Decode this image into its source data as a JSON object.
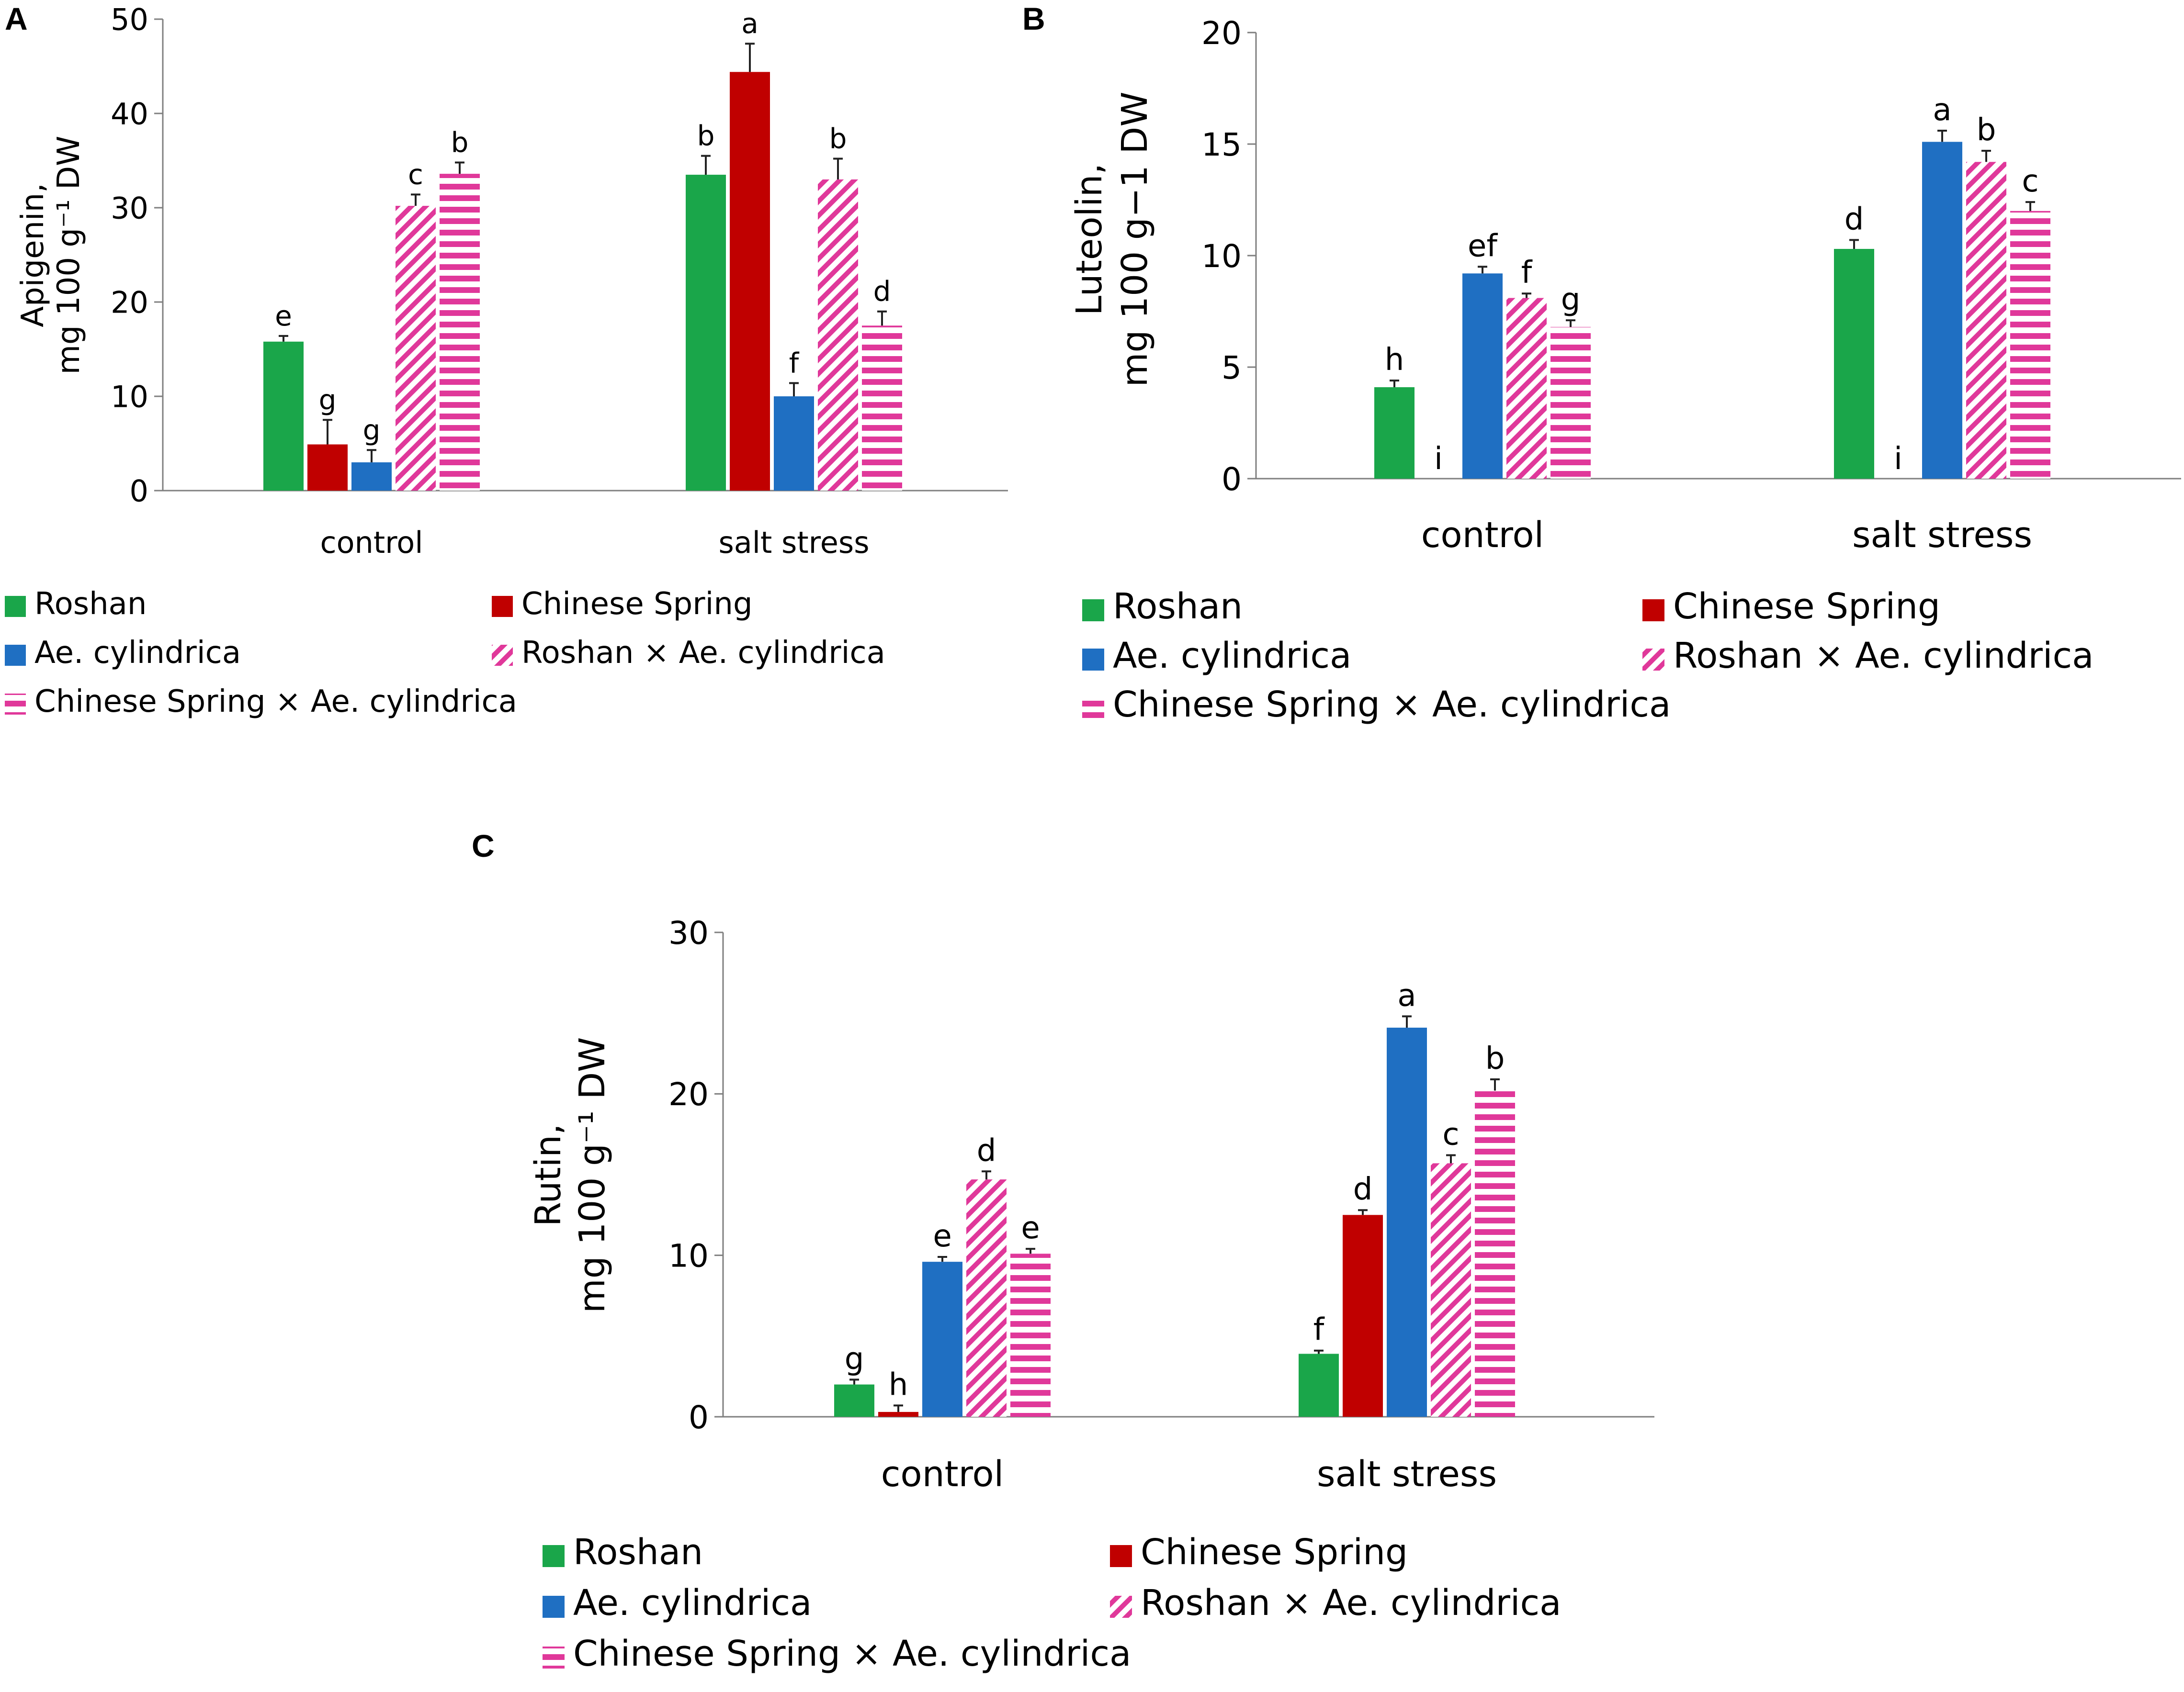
{
  "colors": {
    "roshan": "#1aa64a",
    "chinese_spring": "#c00000",
    "ae_cylindrica": "#1f6fc2",
    "hybrid": "#e0389a",
    "axis": "#7f7f7f",
    "error": "#222222"
  },
  "legend": {
    "series": [
      {
        "name": "Roshan",
        "fill": "solid",
        "color": "#1aa64a"
      },
      {
        "name": "Chinese Spring",
        "fill": "solid",
        "color": "#c00000"
      },
      {
        "name": "Ae. cylindrica",
        "fill": "solid",
        "color": "#1f6fc2"
      },
      {
        "name": "Roshan × Ae. cylindrica",
        "fill": "diagonal",
        "color": "#e0389a"
      },
      {
        "name": "Chinese Spring × Ae. cylindrica",
        "fill": "horizontal",
        "color": "#e0389a"
      }
    ]
  },
  "chart_data": [
    {
      "panel": "A",
      "type": "bar",
      "ylabel_line1": "Apigenin,",
      "ylabel_line2": "mg 100 g⁻¹ DW",
      "ylim": [
        0,
        50
      ],
      "yticks": [
        0,
        10,
        20,
        30,
        40,
        50
      ],
      "categories": [
        "control",
        "salt stress"
      ],
      "series": [
        {
          "name": "Roshan",
          "values": [
            15.8,
            33.5
          ],
          "errors": [
            0.6,
            2.0
          ],
          "letters": [
            "e",
            "b"
          ]
        },
        {
          "name": "Chinese Spring",
          "values": [
            4.9,
            44.4
          ],
          "errors": [
            2.6,
            3.0
          ],
          "letters": [
            "g",
            "a"
          ]
        },
        {
          "name": "Ae. cylindrica",
          "values": [
            3.0,
            10.0
          ],
          "errors": [
            1.3,
            1.4
          ],
          "letters": [
            "g",
            "f"
          ]
        },
        {
          "name": "Roshan × Ae. cylindrica",
          "values": [
            30.2,
            33.0
          ],
          "errors": [
            1.2,
            2.2
          ],
          "letters": [
            "c",
            "b"
          ]
        },
        {
          "name": "Chinese Spring × Ae. cylindrica",
          "values": [
            33.6,
            17.5
          ],
          "errors": [
            1.2,
            1.5
          ],
          "letters": [
            "b",
            "d"
          ]
        }
      ]
    },
    {
      "panel": "B",
      "type": "bar",
      "ylabel_line1": "Luteolin,",
      "ylabel_line2": "mg 100 g−1 DW",
      "ylim": [
        0,
        20
      ],
      "yticks": [
        0,
        5,
        10,
        15,
        20
      ],
      "categories": [
        "control",
        "salt stress"
      ],
      "series": [
        {
          "name": "Roshan",
          "values": [
            4.1,
            10.3
          ],
          "errors": [
            0.3,
            0.4
          ],
          "letters": [
            "h",
            "d"
          ]
        },
        {
          "name": "Chinese Spring",
          "values": [
            0.0,
            0.0
          ],
          "errors": [
            0.0,
            0.0
          ],
          "letters": [
            "i",
            "i"
          ]
        },
        {
          "name": "Ae. cylindrica",
          "values": [
            9.2,
            15.1
          ],
          "errors": [
            0.3,
            0.5
          ],
          "letters": [
            "ef",
            "a"
          ]
        },
        {
          "name": "Roshan × Ae. cylindrica",
          "values": [
            8.1,
            14.2
          ],
          "errors": [
            0.2,
            0.5
          ],
          "letters": [
            "f",
            "b"
          ]
        },
        {
          "name": "Chinese Spring × Ae. cylindrica",
          "values": [
            6.8,
            12.0
          ],
          "errors": [
            0.3,
            0.4
          ],
          "letters": [
            "g",
            "c"
          ]
        }
      ]
    },
    {
      "panel": "C",
      "type": "bar",
      "ylabel_line1": "Rutin,",
      "ylabel_line2": "mg 100 g⁻¹ DW",
      "ylim": [
        0,
        30
      ],
      "yticks": [
        0,
        10,
        20,
        30
      ],
      "categories": [
        "control",
        "salt stress"
      ],
      "series": [
        {
          "name": "Roshan",
          "values": [
            2.0,
            3.9
          ],
          "errors": [
            0.3,
            0.2
          ],
          "letters": [
            "g",
            "f"
          ]
        },
        {
          "name": "Chinese Spring",
          "values": [
            0.3,
            12.5
          ],
          "errors": [
            0.4,
            0.3
          ],
          "letters": [
            "h",
            "d"
          ]
        },
        {
          "name": "Ae. cylindrica",
          "values": [
            9.6,
            24.1
          ],
          "errors": [
            0.3,
            0.7
          ],
          "letters": [
            "e",
            "a"
          ]
        },
        {
          "name": "Roshan × Ae. cylindrica",
          "values": [
            14.7,
            15.7
          ],
          "errors": [
            0.5,
            0.5
          ],
          "letters": [
            "d",
            "c"
          ]
        },
        {
          "name": "Chinese Spring × Ae. cylindrica",
          "values": [
            10.1,
            20.2
          ],
          "errors": [
            0.3,
            0.7
          ],
          "letters": [
            "e",
            "b"
          ]
        }
      ]
    }
  ]
}
